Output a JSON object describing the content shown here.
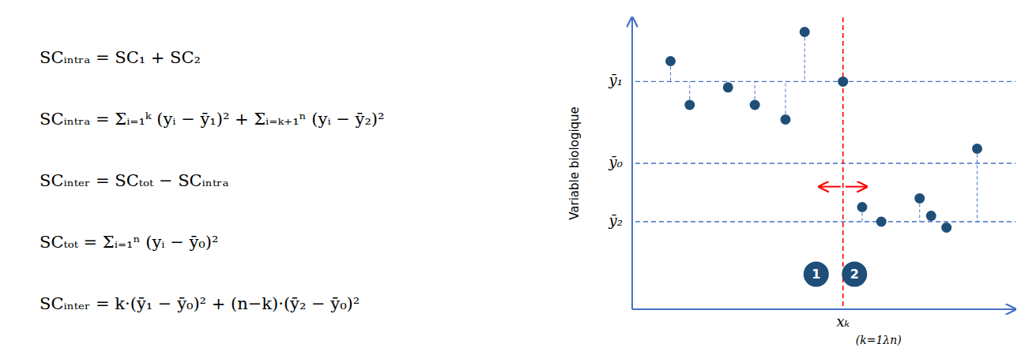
{
  "chart_data": {
    "type": "scatter",
    "ylabel": "Variable biologique",
    "xlim": [
      0,
      10
    ],
    "ylim": [
      0,
      10
    ],
    "tick_labels": false,
    "grid": false,
    "color": "#4472c4",
    "series": [
      {
        "color": "#1f4e79",
        "marker": "circle",
        "ref": 7.8,
        "x": [
          1.0,
          1.5,
          2.5,
          3.2,
          4.0,
          4.5,
          5.5
        ],
        "values": [
          8.5,
          7.0,
          7.6,
          7.0,
          6.5,
          9.5,
          7.8
        ]
      },
      {
        "color": "#1f4e79",
        "marker": "circle",
        "ref": 3.0,
        "x": [
          6.0,
          6.5,
          7.5,
          7.8,
          8.2,
          9.0
        ],
        "values": [
          3.5,
          3.0,
          3.8,
          3.2,
          2.8,
          5.5
        ]
      }
    ],
    "annotations": [
      {
        "type": "text",
        "text": "SCᵢₙₜᵣₐ = SC₁ + SC₂"
      },
      {
        "type": "text",
        "text": "SCᵢₙₜᵣₐ = Σᵢ₌₁ᵏ (yᵢ − ȳ₁)² + Σᵢ₌ₖ₊₁ⁿ (yᵢ − ȳ₂)²"
      },
      {
        "type": "text",
        "text": "SCᵢₙₜₑᵣ = SCₜₒₜ − SCᵢₙₜᵣₐ"
      },
      {
        "type": "text",
        "text": "SCₜₒₜ = Σᵢ₌₁ⁿ (yᵢ − ȳ₀)²"
      },
      {
        "type": "text",
        "text": "SCᵢₙₜₑᵣ = k·(ȳ₁ − ȳ₀)² + (n−k)·(ȳ₂ − ȳ₀)²"
      },
      {
        "type": "hline",
        "y": 7.8,
        "text": "ȳ₁",
        "color": "#4472c4",
        "line_style": "dashed"
      },
      {
        "type": "hline",
        "y": 5.0,
        "text": "ȳ₀",
        "color": "#4472c4",
        "line_style": "dashed"
      },
      {
        "type": "hline",
        "y": 3.0,
        "text": "ȳ₂",
        "color": "#4472c4",
        "line_style": "dashed"
      },
      {
        "type": "vline",
        "x": 5.5,
        "texts": [
          "xₖ",
          "(k=1λn)"
        ],
        "color": "#ff0000",
        "line_style": "dashed"
      },
      {
        "type": "arrow",
        "x": 5.5,
        "y": 4.2,
        "color": "#ff0000"
      },
      {
        "type": "circle",
        "x": 4.8,
        "y": 1.2,
        "text": "1",
        "color": "#1f4e79"
      },
      {
        "type": "circle",
        "x": 5.8,
        "y": 1.2,
        "text": "2",
        "color": "#1f4e79"
      }
    ]
  }
}
